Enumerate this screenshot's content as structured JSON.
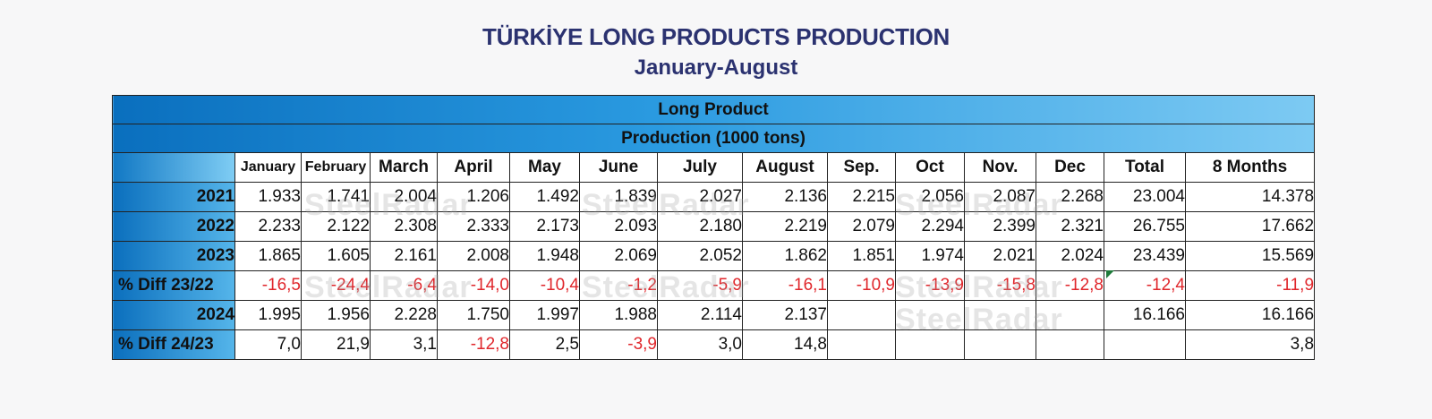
{
  "title": "TÜRKİYE LONG PRODUCTS PRODUCTION",
  "subtitle": "January-August",
  "banner1": "Long Product",
  "banner2": "Production (1000 tons)",
  "watermark": "SteelRadar",
  "columns": [
    "January",
    "February",
    "March",
    "April",
    "May",
    "June",
    "July",
    "August",
    "Sep.",
    "Oct",
    "Nov.",
    "Dec",
    "Total",
    "8 Months"
  ],
  "rows": [
    {
      "label": "2021",
      "values": [
        "1.933",
        "1.741",
        "2.004",
        "1.206",
        "1.492",
        "1.839",
        "2.027",
        "2.136",
        "2.215",
        "2.056",
        "2.087",
        "2.268",
        "23.004",
        "14.378"
      ],
      "neg": [
        false,
        false,
        false,
        false,
        false,
        false,
        false,
        false,
        false,
        false,
        false,
        false,
        false,
        false
      ]
    },
    {
      "label": "2022",
      "values": [
        "2.233",
        "2.122",
        "2.308",
        "2.333",
        "2.173",
        "2.093",
        "2.180",
        "2.219",
        "2.079",
        "2.294",
        "2.399",
        "2.321",
        "26.755",
        "17.662"
      ],
      "neg": [
        false,
        false,
        false,
        false,
        false,
        false,
        false,
        false,
        false,
        false,
        false,
        false,
        false,
        false
      ]
    },
    {
      "label": "2023",
      "values": [
        "1.865",
        "1.605",
        "2.161",
        "2.008",
        "1.948",
        "2.069",
        "2.052",
        "1.862",
        "1.851",
        "1.974",
        "2.021",
        "2.024",
        "23.439",
        "15.569"
      ],
      "neg": [
        false,
        false,
        false,
        false,
        false,
        false,
        false,
        false,
        false,
        false,
        false,
        false,
        false,
        false
      ]
    },
    {
      "label": "% Diff 23/22",
      "values": [
        "-16,5",
        "-24,4",
        "-6,4",
        "-14,0",
        "-10,4",
        "-1,2",
        "-5,9",
        "-16,1",
        "-10,9",
        "-13,9",
        "-15,8",
        "-12,8",
        "-12,4",
        "-11,9"
      ],
      "neg": [
        true,
        true,
        true,
        true,
        true,
        true,
        true,
        true,
        true,
        true,
        true,
        true,
        true,
        true
      ]
    },
    {
      "label": "2024",
      "values": [
        "1.995",
        "1.956",
        "2.228",
        "1.750",
        "1.997",
        "1.988",
        "2.114",
        "2.137",
        "",
        "",
        "",
        "",
        "16.166",
        "16.166"
      ],
      "neg": [
        false,
        false,
        false,
        false,
        false,
        false,
        false,
        false,
        false,
        false,
        false,
        false,
        false,
        false
      ]
    },
    {
      "label": "% Diff 24/23",
      "values": [
        "7,0",
        "21,9",
        "3,1",
        "-12,8",
        "2,5",
        "-3,9",
        "3,0",
        "14,8",
        "",
        "",
        "",
        "",
        "",
        "3,8"
      ],
      "neg": [
        false,
        false,
        false,
        true,
        false,
        true,
        false,
        false,
        false,
        false,
        false,
        false,
        false,
        false
      ]
    }
  ],
  "colors": {
    "title": "#2b3270",
    "negative": "#e0262b",
    "header_blue": "#0b6fbd"
  },
  "chart_data": {
    "type": "table",
    "title": "TÜRKİYE LONG PRODUCTS PRODUCTION",
    "subtitle": "January-August",
    "unit": "Production (1000 tons)",
    "columns": [
      "January",
      "February",
      "March",
      "April",
      "May",
      "June",
      "July",
      "August",
      "Sep.",
      "Oct",
      "Nov.",
      "Dec",
      "Total",
      "8 Months"
    ],
    "series": [
      {
        "name": "2021",
        "values": [
          1933,
          1741,
          2004,
          1206,
          1492,
          1839,
          2027,
          2136,
          2215,
          2056,
          2087,
          2268,
          23004,
          14378
        ]
      },
      {
        "name": "2022",
        "values": [
          2233,
          2122,
          2308,
          2333,
          2173,
          2093,
          2180,
          2219,
          2079,
          2294,
          2399,
          2321,
          26755,
          17662
        ]
      },
      {
        "name": "2023",
        "values": [
          1865,
          1605,
          2161,
          2008,
          1948,
          2069,
          2052,
          1862,
          1851,
          1974,
          2021,
          2024,
          23439,
          15569
        ]
      },
      {
        "name": "% Diff 23/22",
        "values": [
          -16.5,
          -24.4,
          -6.4,
          -14.0,
          -10.4,
          -1.2,
          -5.9,
          -16.1,
          -10.9,
          -13.9,
          -15.8,
          -12.8,
          -12.4,
          -11.9
        ]
      },
      {
        "name": "2024",
        "values": [
          1995,
          1956,
          2228,
          1750,
          1997,
          1988,
          2114,
          2137,
          null,
          null,
          null,
          null,
          16166,
          16166
        ]
      },
      {
        "name": "% Diff 24/23",
        "values": [
          7.0,
          21.9,
          3.1,
          -12.8,
          2.5,
          -3.9,
          3.0,
          14.8,
          null,
          null,
          null,
          null,
          null,
          3.8
        ]
      }
    ]
  }
}
